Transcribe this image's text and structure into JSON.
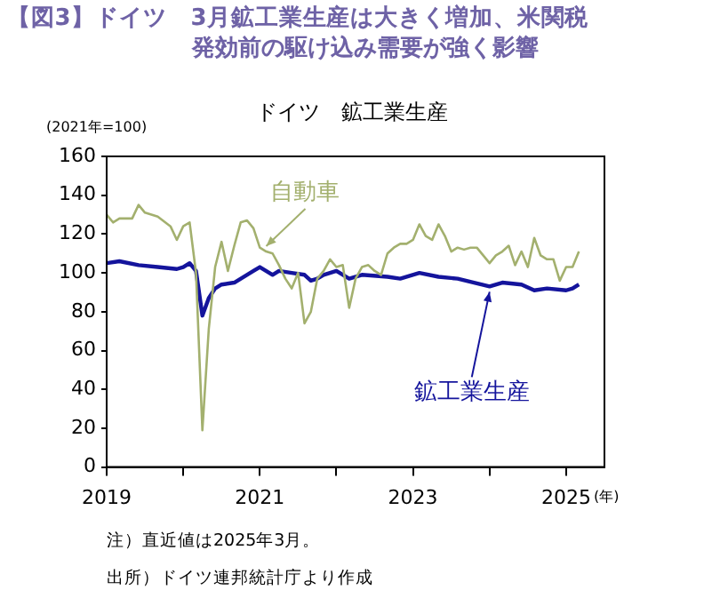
{
  "chart_data": {
    "type": "line",
    "title": "【図3】ドイツ　3月鉱工業生産は大きく増加、米関税発効前の駆け込み需要が強く影響",
    "subtitle": "ドイツ　鉱工業生産",
    "ylabel": "(2021年=100)",
    "xlabel": "(年)",
    "annotations": [
      "注）直近値は2025年3月。",
      "出所）ドイツ連邦統計庁より作成"
    ],
    "xlim": [
      "2019-01",
      "2025-07"
    ],
    "xticks": [
      {
        "value": "2019",
        "label": "2019"
      },
      {
        "value": "2020",
        "label": null
      },
      {
        "value": "2021",
        "label": "2021"
      },
      {
        "value": "2022",
        "label": null
      },
      {
        "value": "2023",
        "label": "2023"
      },
      {
        "value": "2024",
        "label": null
      },
      {
        "value": "2025",
        "label": "2025"
      }
    ],
    "ylim": [
      0,
      160
    ],
    "yticks": [
      0,
      20,
      40,
      60,
      80,
      100,
      120,
      140,
      160
    ],
    "grid": false,
    "legend": false,
    "marker": "none",
    "line_style": "solid",
    "series": [
      {
        "name": "自動車",
        "color": "#a3b06e",
        "x": [
          "2019-01",
          "2019-02",
          "2019-03",
          "2019-05",
          "2019-06",
          "2019-07",
          "2019-09",
          "2019-11",
          "2019-12",
          "2020-01",
          "2020-02",
          "2020-03",
          "2020-04",
          "2020-05",
          "2020-06",
          "2020-07",
          "2020-08",
          "2020-09",
          "2020-10",
          "2020-11",
          "2020-12",
          "2021-01",
          "2021-02",
          "2021-03",
          "2021-04",
          "2021-05",
          "2021-06",
          "2021-07",
          "2021-08",
          "2021-09",
          "2021-10",
          "2021-11",
          "2021-12",
          "2022-01",
          "2022-02",
          "2022-03",
          "2022-04",
          "2022-05",
          "2022-06",
          "2022-07",
          "2022-08",
          "2022-09",
          "2022-10",
          "2022-11",
          "2022-12",
          "2023-01",
          "2023-02",
          "2023-03",
          "2023-04",
          "2023-05",
          "2023-06",
          "2023-07",
          "2023-08",
          "2023-09",
          "2023-10",
          "2023-11",
          "2023-12",
          "2024-01",
          "2024-02",
          "2024-03",
          "2024-04",
          "2024-05",
          "2024-06",
          "2024-07",
          "2024-08",
          "2024-09",
          "2024-10",
          "2024-11",
          "2024-12",
          "2025-01",
          "2025-02",
          "2025-03"
        ],
        "values": [
          130,
          126,
          128,
          128,
          135,
          131,
          129,
          124,
          117,
          124,
          126,
          100,
          19,
          71,
          103,
          116,
          101,
          114,
          126,
          127,
          123,
          113,
          111,
          110,
          104,
          97,
          92,
          100,
          74,
          80,
          97,
          101,
          107,
          103,
          104,
          82,
          97,
          103,
          104,
          101,
          99,
          110,
          113,
          115,
          115,
          117,
          125,
          119,
          117,
          125,
          119,
          111,
          113,
          112,
          113,
          113,
          109,
          105,
          109,
          111,
          114,
          104,
          111,
          103,
          118,
          109,
          107,
          107,
          96,
          103,
          103,
          111
        ]
      },
      {
        "name": "鉱工業生産",
        "color": "#14149c",
        "x": [
          "2019-01",
          "2019-03",
          "2019-06",
          "2019-09",
          "2019-12",
          "2020-01",
          "2020-02",
          "2020-03",
          "2020-04",
          "2020-05",
          "2020-06",
          "2020-07",
          "2020-09",
          "2020-12",
          "2021-01",
          "2021-03",
          "2021-04",
          "2021-06",
          "2021-08",
          "2021-09",
          "2021-10",
          "2021-11",
          "2022-01",
          "2022-03",
          "2022-05",
          "2022-09",
          "2022-11",
          "2023-02",
          "2023-05",
          "2023-08",
          "2024-01",
          "2024-03",
          "2024-06",
          "2024-08",
          "2024-10",
          "2025-01",
          "2025-02",
          "2025-03"
        ],
        "values": [
          105,
          106,
          104,
          103,
          102,
          103,
          105,
          101,
          78,
          87,
          92,
          94,
          95,
          101,
          103,
          99,
          101,
          100,
          99,
          96,
          97,
          99,
          101,
          97,
          99,
          98,
          97,
          100,
          98,
          97,
          93,
          95,
          94,
          91,
          92,
          91,
          92,
          94
        ]
      }
    ]
  }
}
